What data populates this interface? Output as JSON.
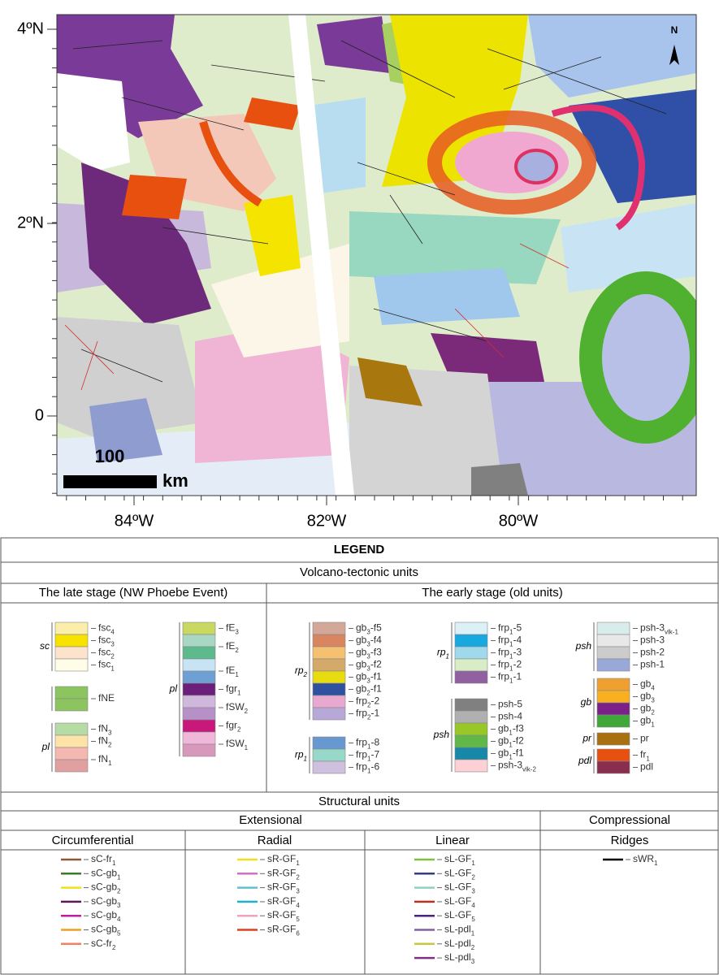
{
  "map": {
    "lat_labels": [
      "4ºN",
      "2ºN",
      "0"
    ],
    "lon_labels": [
      "84ºW",
      "82ºW",
      "80ºW"
    ],
    "scale_value": "100",
    "scale_unit": "km",
    "north": "N"
  },
  "legend": {
    "title": "LEGEND",
    "volcano_title": "Volcano-tectonic units",
    "late_stage": {
      "title": "The late stage (NW Phoebe Event)",
      "groups": [
        {
          "label": "sc",
          "items": [
            {
              "parts": [
                "fsc",
                "4"
              ],
              "colors": [
                "#fbeeaa"
              ]
            },
            {
              "parts": [
                "fsc",
                "3"
              ],
              "colors": [
                "#f7e200"
              ]
            },
            {
              "parts": [
                "fsc",
                "2"
              ],
              "colors": [
                "#fde3cc"
              ]
            },
            {
              "parts": [
                "fsc",
                "1"
              ],
              "colors": [
                "#fffde8"
              ]
            }
          ]
        },
        {
          "items": [
            {
              "parts": [
                "fNE"
              ],
              "colors": [
                "#8cc460",
                "#8cc460"
              ]
            }
          ]
        },
        {
          "label": "pl",
          "items": [
            {
              "parts": [
                "fN",
                "3"
              ],
              "colors": [
                "#b5dca4"
              ]
            },
            {
              "parts": [
                "fN",
                "2"
              ],
              "colors": [
                "#fde3a8"
              ]
            },
            {
              "parts": [
                "fN",
                "1"
              ],
              "colors": [
                "#f4b8b0",
                "#e0a0a0"
              ]
            }
          ]
        },
        {
          "label": "pl",
          "items": [
            {
              "parts": [
                "fE",
                "3"
              ],
              "colors": [
                "#c9d861"
              ]
            },
            {
              "parts": [
                "fE",
                "2"
              ],
              "colors": [
                "#a8d8c4",
                "#5cba8c"
              ]
            },
            {
              "parts": [
                "fE",
                "1"
              ],
              "colors": [
                "#c8e4f4",
                "#6fa0d4"
              ]
            },
            {
              "parts": [
                "fgr",
                "1"
              ],
              "colors": [
                "#6b1e7a"
              ]
            },
            {
              "parts": [
                "fSW",
                "2"
              ],
              "colors": [
                "#d0b8dc",
                "#b890c8"
              ]
            },
            {
              "parts": [
                "fgr",
                "2"
              ],
              "colors": [
                "#c8187c"
              ]
            },
            {
              "parts": [
                "fSW",
                "1"
              ],
              "colors": [
                "#f0b8d8",
                "#d898bc"
              ]
            }
          ]
        }
      ]
    },
    "early_stage": {
      "title": "The early stage (old units)",
      "groups": [
        {
          "label": "rp2",
          "items": [
            {
              "parts": [
                "gb",
                "3",
                "-f5"
              ],
              "colors": [
                "#d4a898"
              ]
            },
            {
              "parts": [
                "gb",
                "3",
                "-f4"
              ],
              "colors": [
                "#d98560"
              ]
            },
            {
              "parts": [
                "gb",
                "3",
                "-f3"
              ],
              "colors": [
                "#f5c070"
              ]
            },
            {
              "parts": [
                "gb",
                "3",
                "-f2"
              ],
              "colors": [
                "#d4aa6a"
              ]
            },
            {
              "parts": [
                "gb",
                "3",
                "-f1"
              ],
              "colors": [
                "#e8dc10"
              ]
            },
            {
              "parts": [
                "gb",
                "2",
                "-f1"
              ],
              "colors": [
                "#3050a0"
              ]
            },
            {
              "parts": [
                "frp",
                "2",
                "-2"
              ],
              "colors": [
                "#e8a8d0"
              ]
            },
            {
              "parts": [
                "frp",
                "2",
                "-1"
              ],
              "colors": [
                "#b8a8d8"
              ]
            }
          ]
        },
        {
          "label": "rp1",
          "items": [
            {
              "parts": [
                "frp",
                "1",
                "-8"
              ],
              "colors": [
                "#6898d0"
              ]
            },
            {
              "parts": [
                "frp",
                "1",
                "-7"
              ],
              "colors": [
                "#98d8c8"
              ]
            },
            {
              "parts": [
                "frp",
                "1",
                "-6"
              ],
              "colors": [
                "#d0c0e0"
              ]
            }
          ]
        },
        {
          "label": "rp1",
          "items": [
            {
              "parts": [
                "frp",
                "1",
                "-5"
              ],
              "colors": [
                "#dcf0f8"
              ]
            },
            {
              "parts": [
                "frp",
                "1",
                "-4"
              ],
              "colors": [
                "#18a8e0"
              ]
            },
            {
              "parts": [
                "frp",
                "1",
                "-3"
              ],
              "colors": [
                "#a0d8ec"
              ]
            },
            {
              "parts": [
                "frp",
                "1",
                "-2"
              ],
              "colors": [
                "#d8ecc8"
              ]
            },
            {
              "parts": [
                "frp",
                "1",
                "-1"
              ],
              "colors": [
                "#9060a0"
              ]
            }
          ]
        },
        {
          "label": "psh",
          "items": [
            {
              "parts": [
                "psh-5"
              ],
              "colors": [
                "#808080"
              ]
            },
            {
              "parts": [
                "psh-4"
              ],
              "colors": [
                "#b0b0b0"
              ]
            },
            {
              "parts": [
                "gb",
                "1",
                "-f3"
              ],
              "colors": [
                "#98c828"
              ]
            },
            {
              "parts": [
                "gb",
                "1",
                "-f2"
              ],
              "colors": [
                "#60b848"
              ]
            },
            {
              "parts": [
                "gb",
                "1",
                "-f1"
              ],
              "colors": [
                "#1888a8"
              ]
            },
            {
              "parts": [
                "psh-3",
                "vlk-2"
              ],
              "colors": [
                "#fcd0d4"
              ]
            }
          ]
        },
        {
          "label": "psh",
          "items": [
            {
              "parts": [
                "psh-3",
                "vlk-1"
              ],
              "colors": [
                "#d8ecec"
              ]
            },
            {
              "parts": [
                "psh-3"
              ],
              "colors": [
                "#e8e8e8"
              ]
            },
            {
              "parts": [
                "psh-2"
              ],
              "colors": [
                "#cccccc"
              ]
            },
            {
              "parts": [
                "psh-1"
              ],
              "colors": [
                "#9aa8d8"
              ]
            }
          ]
        },
        {
          "label": "gb",
          "items": [
            {
              "parts": [
                "gb",
                "4"
              ],
              "colors": [
                "#f0a030"
              ]
            },
            {
              "parts": [
                "gb",
                "3"
              ],
              "colors": [
                "#f8b020"
              ]
            },
            {
              "parts": [
                "gb",
                "2"
              ],
              "colors": [
                "#7a2088"
              ]
            },
            {
              "parts": [
                "gb",
                "1"
              ],
              "colors": [
                "#40a838"
              ]
            }
          ]
        },
        {
          "label": "pr",
          "items": [
            {
              "parts": [
                "pr"
              ],
              "colors": [
                "#a87010"
              ]
            }
          ]
        },
        {
          "label": "pdl",
          "items": [
            {
              "parts": [
                "fr",
                "1"
              ],
              "colors": [
                "#e85010"
              ]
            },
            {
              "parts": [
                "pdl"
              ],
              "colors": [
                "#8a2e50"
              ]
            }
          ]
        }
      ]
    },
    "structural_title": "Structural units",
    "extensional": "Extensional",
    "compressional": "Compressional",
    "columns": [
      {
        "title": "Circumferential",
        "items": [
          {
            "parts": [
              "sC-fr",
              "1"
            ],
            "color": "#8a5a3a"
          },
          {
            "parts": [
              "sC-gb",
              "1"
            ],
            "color": "#3a7a2a"
          },
          {
            "parts": [
              "sC-gb",
              "2"
            ],
            "color": "#f0e020"
          },
          {
            "parts": [
              "sC-gb",
              "3"
            ],
            "color": "#5a1a5a"
          },
          {
            "parts": [
              "sC-gb",
              "4"
            ],
            "color": "#c020a0"
          },
          {
            "parts": [
              "sC-gb",
              "5"
            ],
            "color": "#f0a020"
          },
          {
            "parts": [
              "sC-fr",
              "2"
            ],
            "color": "#f08060"
          }
        ]
      },
      {
        "title": "Radial",
        "items": [
          {
            "parts": [
              "sR-GF",
              "1"
            ],
            "color": "#f0e020"
          },
          {
            "parts": [
              "sR-GF",
              "2"
            ],
            "color": "#d070c0"
          },
          {
            "parts": [
              "sR-GF",
              "3"
            ],
            "color": "#60c0d0"
          },
          {
            "parts": [
              "sR-GF",
              "4"
            ],
            "color": "#20b0d0"
          },
          {
            "parts": [
              "sR-GF",
              "5"
            ],
            "color": "#f0a0c0"
          },
          {
            "parts": [
              "sR-GF",
              "6"
            ],
            "color": "#e04020"
          }
        ]
      },
      {
        "title": "Linear",
        "items": [
          {
            "parts": [
              "sL-GF",
              "1"
            ],
            "color": "#80c040"
          },
          {
            "parts": [
              "sL-GF",
              "2"
            ],
            "color": "#304080"
          },
          {
            "parts": [
              "sL-GF",
              "3"
            ],
            "color": "#90d0c0"
          },
          {
            "parts": [
              "sL-GF",
              "4"
            ],
            "color": "#c03020"
          },
          {
            "parts": [
              "sL-GF",
              "5"
            ],
            "color": "#502080"
          },
          {
            "parts": [
              "sL-pdl",
              "1"
            ],
            "color": "#8060a0"
          },
          {
            "parts": [
              "sL-pdl",
              "2"
            ],
            "color": "#c8c840"
          },
          {
            "parts": [
              "sL-pdl",
              "3"
            ],
            "color": "#803080"
          }
        ]
      },
      {
        "title": "Ridges",
        "items": [
          {
            "parts": [
              "sWR",
              "1"
            ],
            "color": "#000000"
          }
        ]
      }
    ]
  }
}
